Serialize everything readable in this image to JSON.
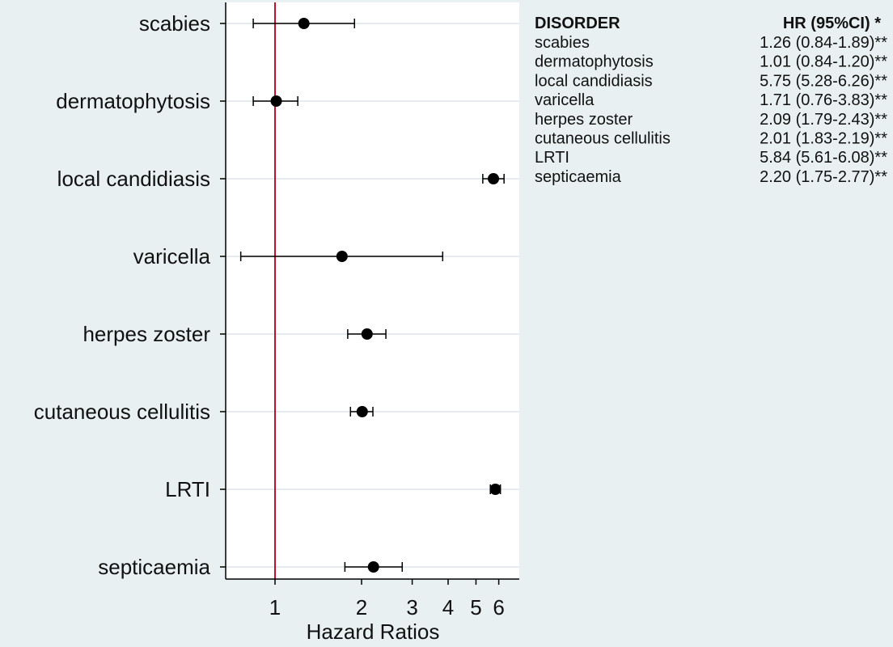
{
  "chart_data": {
    "type": "scatter",
    "subtype": "forest-plot",
    "x_scale": "log",
    "xlabel": "Hazard Ratios",
    "xticks": [
      1,
      2,
      3,
      4,
      5,
      6
    ],
    "xlim": [
      0.5,
      7.5
    ],
    "reference_line": {
      "x": 1,
      "color": "#c0102a"
    },
    "categories": [
      "scabies",
      "dermatophytosis",
      "local candidiasis",
      "varicella",
      "herpes zoster",
      "cutaneous cellulitis",
      "LRTI",
      "septicaemia"
    ],
    "series": [
      {
        "hr": [
          1.26,
          1.01,
          5.75,
          1.71,
          2.09,
          2.01,
          5.84,
          2.2
        ],
        "ci_low": [
          0.84,
          0.84,
          5.28,
          0.76,
          1.79,
          1.83,
          5.61,
          1.75
        ],
        "ci_high": [
          1.89,
          1.2,
          6.26,
          3.83,
          2.43,
          2.19,
          6.08,
          2.77
        ]
      }
    ],
    "grid": true,
    "table": {
      "header_left": "DISORDER",
      "header_right": "HR (95%CI) *",
      "rows": [
        {
          "label": "scabies",
          "value": "1.26 (0.84-1.89)**"
        },
        {
          "label": "dermatophytosis",
          "value": "1.01 (0.84-1.20)**"
        },
        {
          "label": "local candidiasis",
          "value": "5.75 (5.28-6.26)**"
        },
        {
          "label": "varicella",
          "value": "1.71 (0.76-3.83)**"
        },
        {
          "label": "herpes zoster",
          "value": "2.09 (1.79-2.43)**"
        },
        {
          "label": "cutaneous cellulitis",
          "value": "2.01 (1.83-2.19)**"
        },
        {
          "label": "LRTI",
          "value": "5.84 (5.61-6.08)**"
        },
        {
          "label": "septicaemia",
          "value": "2.20 (1.75-2.77)**"
        }
      ]
    }
  },
  "colors": {
    "background": "#e9f0f2",
    "plot_background": "#ffffff",
    "gridline": "#e4ecef",
    "reference": "#c0102a",
    "marker": "#000000"
  }
}
